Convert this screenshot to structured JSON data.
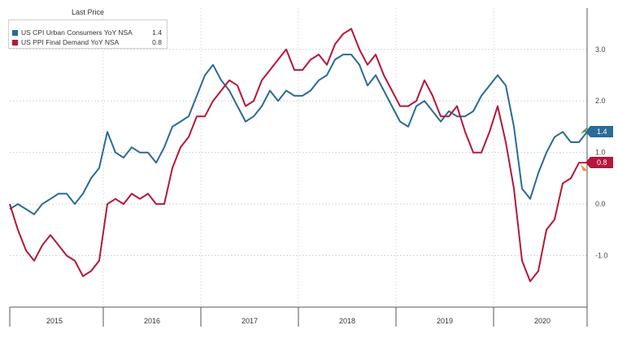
{
  "legend": {
    "title": "Last Price",
    "items": [
      {
        "name": "US CPI Urban Consumers YoY NSA",
        "value": "1.4",
        "color": "#2a6b97"
      },
      {
        "name": "US PPI Final Demand YoY NSA",
        "value": "0.8",
        "color": "#b5173a"
      }
    ]
  },
  "chart_data": {
    "type": "line",
    "x_start": "2015-01",
    "x_end": "2020-10",
    "x_tick_labels": [
      "2015",
      "2016",
      "2017",
      "2018",
      "2019",
      "2020"
    ],
    "y_tick_labels": [
      "3.0",
      "2.0",
      "1.0",
      "0.0",
      "-1.0"
    ],
    "ylim": [
      -2.0,
      3.8
    ],
    "grid": true,
    "legend_position": "top-left",
    "series": [
      {
        "name": "US CPI Urban Consumers YoY NSA",
        "color": "#2a6b97",
        "last_value_label": "1.4",
        "values": [
          -0.1,
          0.0,
          -0.1,
          -0.2,
          0.0,
          0.1,
          0.2,
          0.2,
          0.0,
          0.2,
          0.5,
          0.7,
          1.4,
          1.0,
          0.9,
          1.1,
          1.0,
          1.0,
          0.8,
          1.1,
          1.5,
          1.6,
          1.7,
          2.1,
          2.5,
          2.7,
          2.4,
          2.2,
          1.9,
          1.6,
          1.7,
          1.9,
          2.2,
          2.0,
          2.2,
          2.1,
          2.1,
          2.2,
          2.4,
          2.5,
          2.8,
          2.9,
          2.9,
          2.7,
          2.3,
          2.5,
          2.2,
          1.9,
          1.6,
          1.5,
          1.9,
          2.0,
          1.8,
          1.6,
          1.8,
          1.7,
          1.7,
          1.8,
          2.1,
          2.3,
          2.5,
          2.3,
          1.5,
          0.3,
          0.1,
          0.6,
          1.0,
          1.3,
          1.4,
          1.2,
          1.2,
          1.4
        ]
      },
      {
        "name": "US PPI Final Demand YoY NSA",
        "color": "#b5173a",
        "last_value_label": "0.8",
        "values": [
          0.0,
          -0.5,
          -0.9,
          -1.1,
          -0.8,
          -0.6,
          -0.8,
          -1.0,
          -1.1,
          -1.4,
          -1.3,
          -1.1,
          0.0,
          0.1,
          0.0,
          0.2,
          0.1,
          0.2,
          0.0,
          0.0,
          0.7,
          1.1,
          1.3,
          1.7,
          1.7,
          2.0,
          2.2,
          2.4,
          2.3,
          1.9,
          2.0,
          2.4,
          2.6,
          2.8,
          3.0,
          2.6,
          2.6,
          2.8,
          2.9,
          2.7,
          3.1,
          3.3,
          3.4,
          3.0,
          2.7,
          2.9,
          2.5,
          2.2,
          1.9,
          1.9,
          2.0,
          2.4,
          2.1,
          1.7,
          1.7,
          1.9,
          1.4,
          1.0,
          1.0,
          1.4,
          1.9,
          1.2,
          0.3,
          -1.1,
          -1.5,
          -1.3,
          -0.5,
          -0.3,
          0.4,
          0.5,
          0.8,
          0.8
        ]
      }
    ]
  }
}
